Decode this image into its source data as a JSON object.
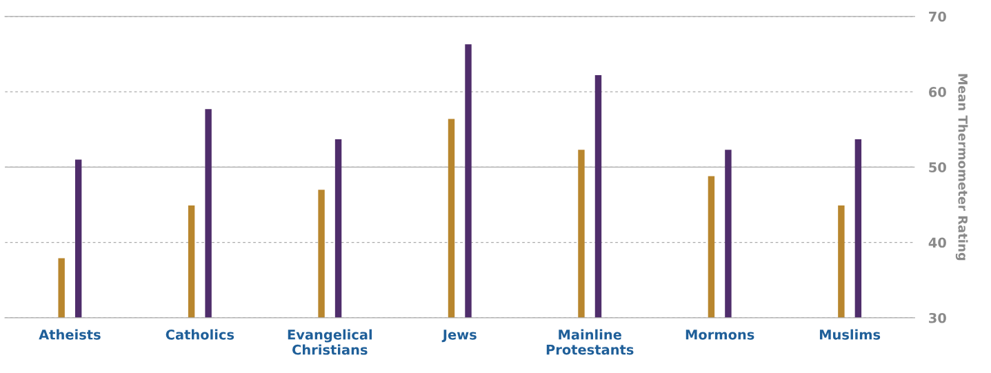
{
  "chart_data": {
    "type": "bar",
    "ylabel": "Mean Thermometer Rating",
    "categories": [
      "Atheists",
      "Catholics",
      "Evangelical\nChristians",
      "Jews",
      "Mainline\nProtestants",
      "Mormons",
      "Muslims"
    ],
    "series": [
      {
        "color": "#b8862e",
        "values": [
          37.9,
          44.9,
          47.0,
          56.4,
          52.3,
          48.8,
          44.9
        ]
      },
      {
        "color": "#4f2d6b",
        "values": [
          51.0,
          57.7,
          53.7,
          66.3,
          62.2,
          52.3,
          53.7
        ]
      }
    ],
    "ref_lines": [
      {
        "axis": "y",
        "value": 50,
        "color": "#aaaaaa",
        "line_style": "solid"
      }
    ],
    "ylim": [
      30,
      70
    ],
    "yticks": [
      30,
      40,
      50,
      60,
      70
    ],
    "grid": "y",
    "legend": false
  }
}
